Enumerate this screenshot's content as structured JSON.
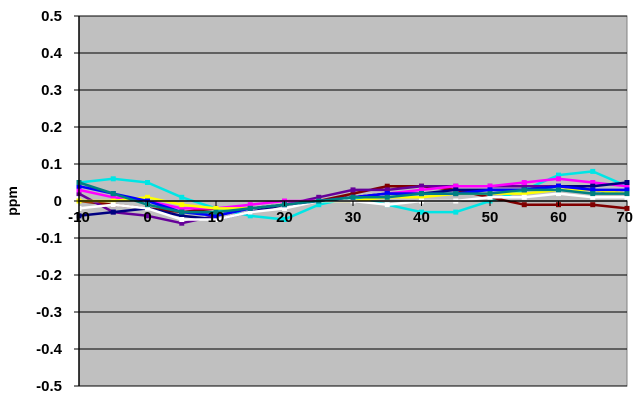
{
  "chart_data": {
    "type": "line",
    "title": "",
    "xlabel": "",
    "ylabel": "ppm",
    "xlim": [
      -10,
      70
    ],
    "ylim": [
      -0.5,
      0.5
    ],
    "x_ticks": [
      "-10",
      "0",
      "10",
      "20",
      "30",
      "40",
      "50",
      "60",
      "70"
    ],
    "y_ticks": [
      "0.5",
      "0.4",
      "0.3",
      "0.2",
      "0.1",
      "0",
      "-0.1",
      "-0.2",
      "-0.3",
      "-0.4",
      "-0.5"
    ],
    "grid": true,
    "legend": "none",
    "x": [
      -10,
      -5,
      0,
      5,
      10,
      15,
      20,
      25,
      30,
      35,
      40,
      45,
      50,
      55,
      60,
      65,
      70
    ],
    "series": [
      {
        "color": "#00e5e5",
        "values": [
          0.05,
          0.06,
          0.05,
          0.01,
          -0.02,
          -0.04,
          -0.05,
          -0.01,
          0.01,
          -0.01,
          -0.03,
          -0.03,
          0.0,
          0.03,
          0.07,
          0.08,
          0.04
        ]
      },
      {
        "color": "#800000",
        "values": [
          0.0,
          -0.01,
          -0.02,
          -0.03,
          -0.02,
          -0.02,
          -0.01,
          0.0,
          0.02,
          0.04,
          0.04,
          0.03,
          0.01,
          -0.01,
          -0.01,
          -0.01,
          -0.02
        ]
      },
      {
        "color": "#660099",
        "values": [
          0.02,
          -0.03,
          -0.04,
          -0.06,
          -0.04,
          -0.02,
          -0.01,
          0.01,
          0.03,
          0.03,
          0.04,
          0.04,
          0.04,
          0.04,
          0.04,
          0.03,
          0.02
        ]
      },
      {
        "color": "#ff00ff",
        "values": [
          0.03,
          0.01,
          0.0,
          -0.02,
          -0.02,
          -0.01,
          0.0,
          0.0,
          0.01,
          0.02,
          0.03,
          0.04,
          0.04,
          0.05,
          0.06,
          0.05,
          0.04
        ]
      },
      {
        "color": "#000080",
        "values": [
          -0.04,
          -0.03,
          -0.02,
          -0.04,
          -0.05,
          -0.03,
          -0.01,
          0.0,
          0.01,
          0.02,
          0.02,
          0.03,
          0.03,
          0.03,
          0.04,
          0.04,
          0.05
        ]
      },
      {
        "color": "#ffff00",
        "values": [
          0.0,
          0.0,
          0.01,
          -0.01,
          -0.02,
          -0.02,
          -0.01,
          0.0,
          0.0,
          0.01,
          0.01,
          0.02,
          0.02,
          0.02,
          0.03,
          0.03,
          0.02
        ]
      },
      {
        "color": "#ffffff",
        "values": [
          -0.02,
          -0.01,
          -0.02,
          -0.05,
          -0.05,
          -0.03,
          -0.02,
          0.0,
          0.0,
          -0.01,
          0.0,
          0.0,
          0.01,
          0.01,
          0.02,
          0.01,
          0.01
        ]
      },
      {
        "color": "#0000ff",
        "values": [
          0.04,
          0.02,
          0.0,
          -0.03,
          -0.04,
          -0.02,
          -0.01,
          0.0,
          0.01,
          0.02,
          0.02,
          0.02,
          0.03,
          0.03,
          0.04,
          0.03,
          0.03
        ]
      },
      {
        "color": "#008080",
        "values": [
          0.05,
          0.02,
          -0.01,
          -0.03,
          -0.03,
          -0.02,
          -0.01,
          0.0,
          0.01,
          0.01,
          0.02,
          0.02,
          0.02,
          0.03,
          0.03,
          0.02,
          0.02
        ]
      }
    ]
  },
  "colors": {
    "plot_background": "#c0c0c0",
    "gridline": "#000000",
    "page_background": "#ffffff"
  }
}
